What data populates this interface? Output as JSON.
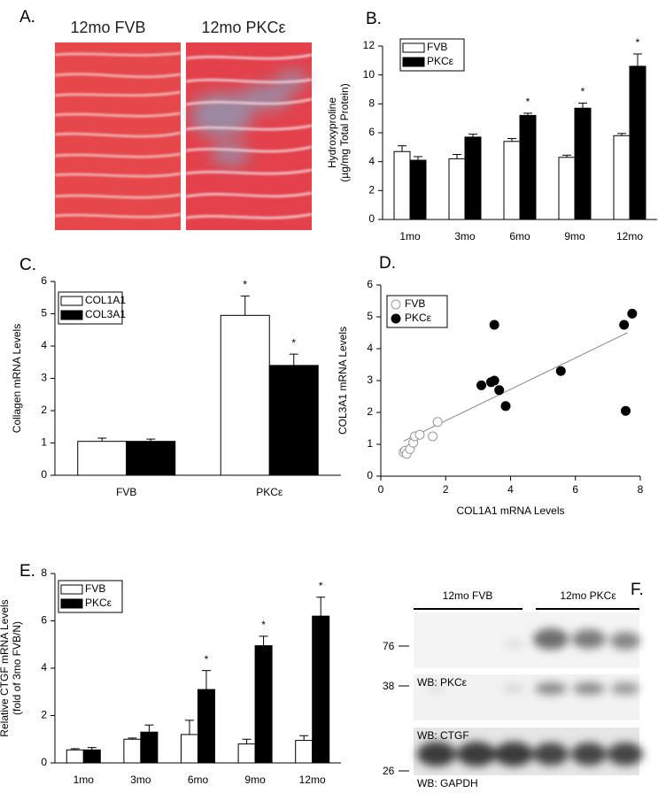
{
  "panel_a": {
    "panel": "A.",
    "images": [
      "12mo FVB",
      "12mo PKCε"
    ]
  },
  "chart_data": [
    {
      "panel": "B.",
      "type": "bar",
      "ylabel": [
        "Hydroxyproline",
        "(µg/mg Total Protein)"
      ],
      "categories": [
        "1mo",
        "3mo",
        "6mo",
        "9mo",
        "12mo"
      ],
      "series": [
        {
          "name": "FVB",
          "color": "#ffffff",
          "values": [
            4.7,
            4.2,
            5.4,
            4.3,
            5.8
          ],
          "errors": [
            0.4,
            0.3,
            0.2,
            0.15,
            0.15
          ],
          "markers": [
            null,
            null,
            null,
            null,
            null
          ]
        },
        {
          "name": "PKCε",
          "color": "#000000",
          "values": [
            4.1,
            5.7,
            7.2,
            7.7,
            10.6
          ],
          "errors": [
            0.25,
            0.2,
            0.15,
            0.35,
            0.85
          ],
          "markers": [
            null,
            null,
            "*",
            "*",
            "*"
          ]
        }
      ],
      "ylim": [
        0,
        12
      ],
      "yticks": [
        0,
        2,
        4,
        6,
        8,
        10,
        12
      ],
      "legend": "upper left"
    },
    {
      "panel": "C.",
      "type": "bar",
      "ylabel": [
        "Collagen mRNA Levels"
      ],
      "categories": [
        "FVB",
        "PKCε"
      ],
      "series": [
        {
          "name": "COL1A1",
          "color": "#ffffff",
          "values": [
            1.05,
            4.95
          ],
          "errors": [
            0.1,
            0.6
          ],
          "markers": [
            null,
            "*"
          ]
        },
        {
          "name": "COL3A1",
          "color": "#000000",
          "values": [
            1.05,
            3.4
          ],
          "errors": [
            0.07,
            0.35
          ],
          "markers": [
            null,
            "*"
          ]
        }
      ],
      "ylim": [
        0,
        6
      ],
      "yticks": [
        0,
        1,
        2,
        3,
        4,
        5,
        6
      ],
      "legend": "upper left"
    },
    {
      "panel": "D.",
      "type": "scatter",
      "xlabel": "COL1A1 mRNA Levels",
      "ylabel": [
        "COL3A1 mRNA Levels"
      ],
      "series": [
        {
          "name": "FVB",
          "color": "#ffffff",
          "x": [
            0.7,
            0.75,
            0.8,
            0.9,
            1.0,
            1.05,
            1.2,
            1.6,
            1.75
          ],
          "values": [
            0.75,
            0.8,
            0.7,
            0.85,
            1.05,
            1.25,
            1.3,
            1.25,
            1.7
          ]
        },
        {
          "name": "PKCε",
          "color": "#000000",
          "x": [
            3.1,
            3.4,
            3.5,
            3.5,
            3.65,
            3.85,
            5.55,
            7.5,
            7.55,
            7.75
          ],
          "values": [
            2.85,
            2.95,
            3.0,
            4.75,
            2.7,
            2.2,
            3.3,
            4.75,
            2.05,
            5.1
          ]
        }
      ],
      "fit": {
        "x": [
          0.7,
          7.6
        ],
        "values": [
          1.1,
          4.5
        ],
        "color": "#888888"
      },
      "xlim": [
        0,
        8
      ],
      "xticks": [
        0,
        2,
        4,
        6,
        8
      ],
      "ylim": [
        0,
        6
      ],
      "yticks": [
        0,
        1,
        2,
        3,
        4,
        5,
        6
      ],
      "legend": "upper left"
    },
    {
      "panel": "E.",
      "type": "bar",
      "ylabel": [
        "Relative CTGF mRNA Levels",
        "(fold of 3mo FVB/N)"
      ],
      "categories": [
        "1mo",
        "3mo",
        "6mo",
        "9mo",
        "12mo"
      ],
      "series": [
        {
          "name": "FVB",
          "color": "#ffffff",
          "values": [
            0.55,
            1.0,
            1.2,
            0.8,
            0.95
          ],
          "errors": [
            0.05,
            0.05,
            0.6,
            0.2,
            0.2
          ],
          "markers": [
            null,
            null,
            null,
            null,
            null
          ]
        },
        {
          "name": "PKCε",
          "color": "#000000",
          "values": [
            0.55,
            1.3,
            3.1,
            4.95,
            6.2
          ],
          "errors": [
            0.1,
            0.3,
            0.8,
            0.4,
            0.8
          ],
          "markers": [
            null,
            null,
            "*",
            "*",
            "*"
          ]
        }
      ],
      "ylim": [
        0,
        8
      ],
      "yticks": [
        0,
        2,
        4,
        6,
        8
      ],
      "legend": "upper left"
    }
  ],
  "panel_f": {
    "panel": "F.",
    "groups": [
      "12mo FVB",
      "12mo PKCε"
    ],
    "blots": [
      {
        "size": 76,
        "label": "WB: PKCε"
      },
      {
        "size": 38,
        "label": "WB: CTGF"
      },
      {
        "size": 26,
        "label": "WB: GAPDH"
      }
    ]
  }
}
